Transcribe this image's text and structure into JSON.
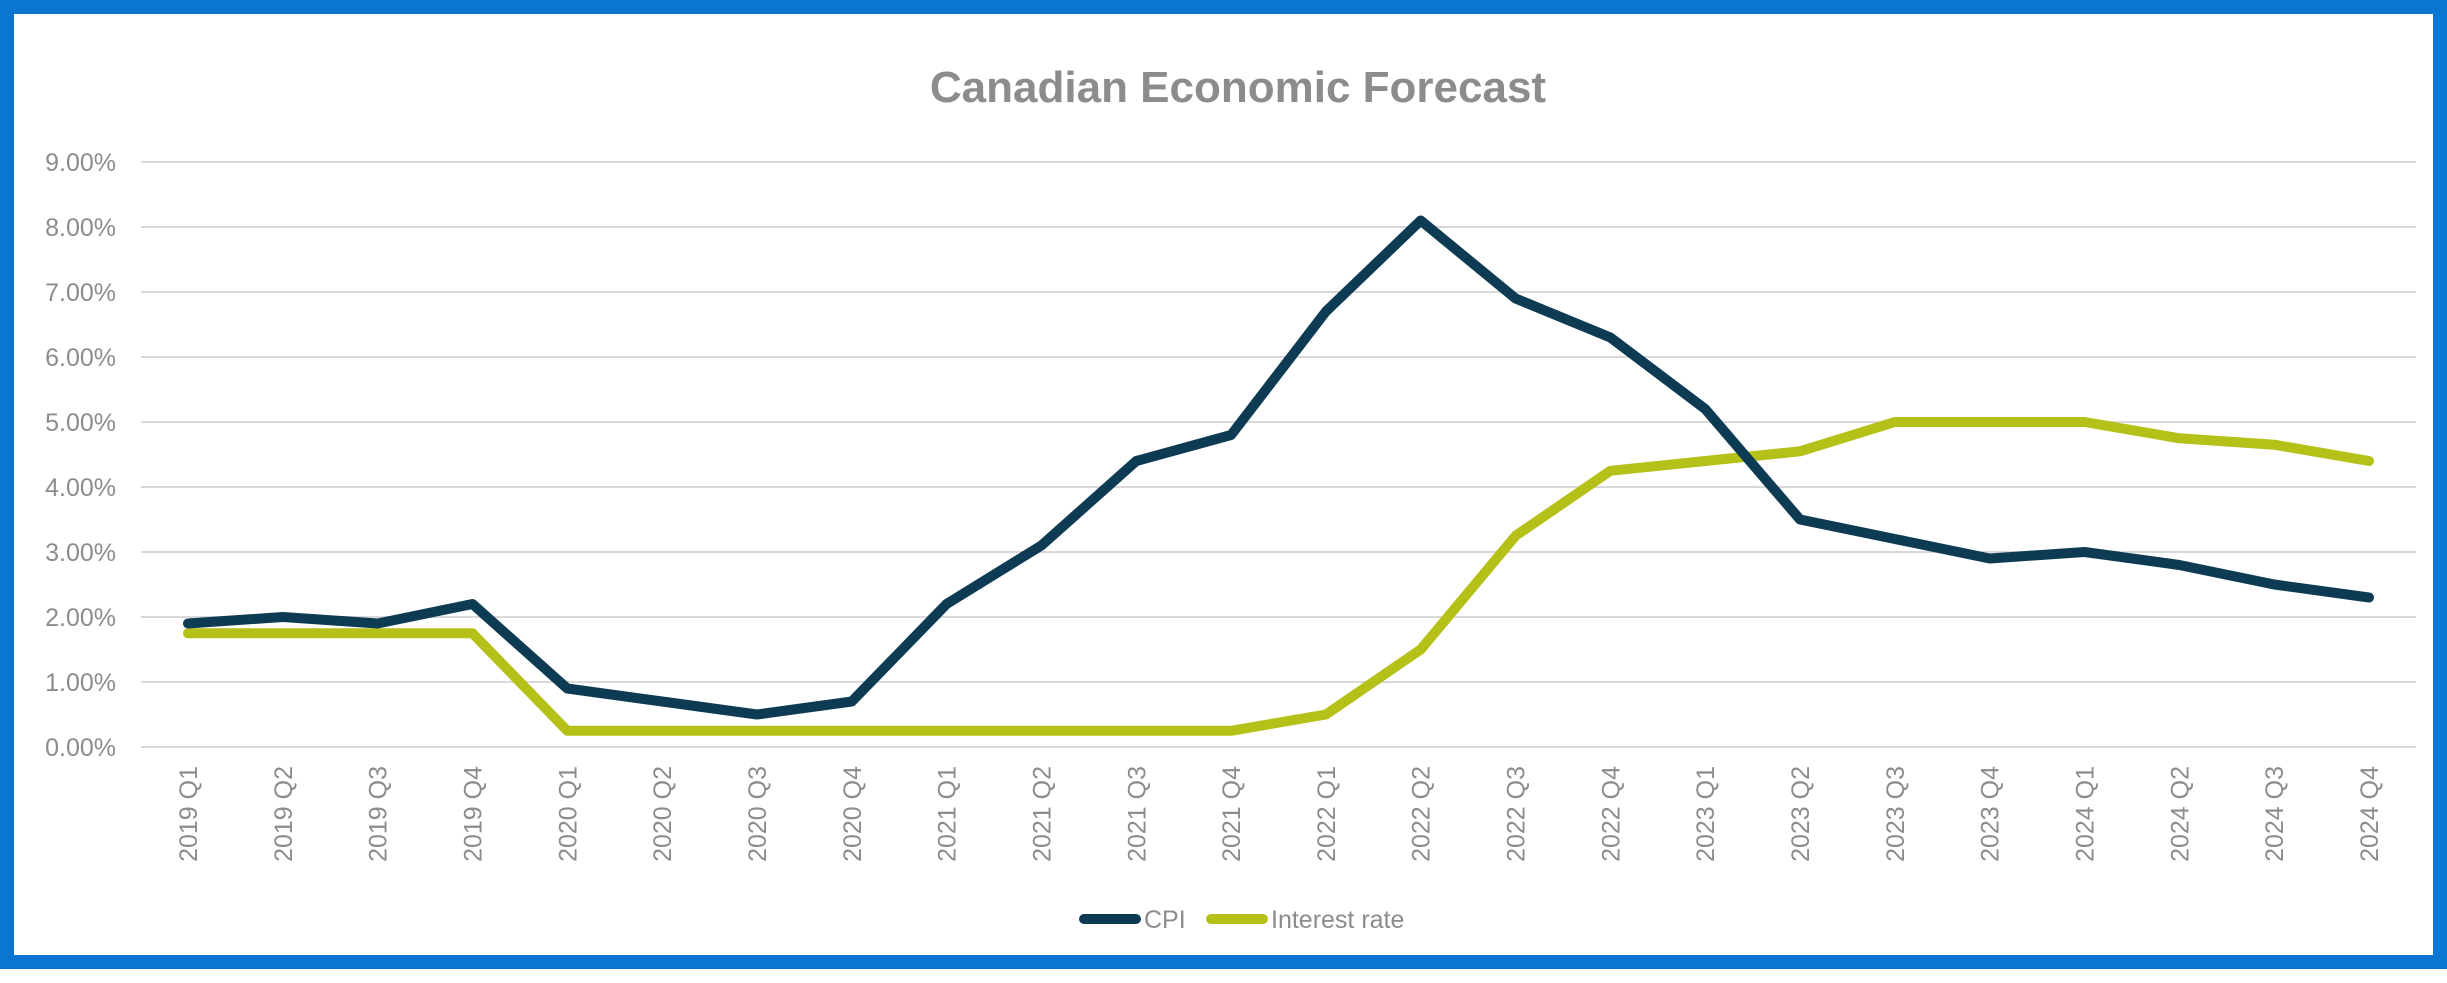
{
  "chart_data": {
    "type": "line",
    "title": "Canadian Economic Forecast",
    "xlabel": "",
    "ylabel": "",
    "ylim": [
      0,
      9
    ],
    "yticks": [
      "0.00%",
      "1.00%",
      "2.00%",
      "3.00%",
      "4.00%",
      "5.00%",
      "6.00%",
      "7.00%",
      "8.00%",
      "9.00%"
    ],
    "categories": [
      "2019 Q1",
      "2019 Q2",
      "2019 Q3",
      "2019 Q4",
      "2020 Q1",
      "2020 Q2",
      "2020 Q3",
      "2020 Q4",
      "2021 Q1",
      "2021 Q2",
      "2021 Q3",
      "2021 Q4",
      "2022 Q1",
      "2022 Q2",
      "2022 Q3",
      "2022 Q4",
      "2023 Q1",
      "2023 Q2",
      "2023 Q3",
      "2023 Q4",
      "2024 Q1",
      "2024 Q2",
      "2024 Q3",
      "2024 Q4"
    ],
    "series": [
      {
        "name": "CPI",
        "color": "#0d3b54",
        "values": [
          1.9,
          2.0,
          1.9,
          2.2,
          0.9,
          0.7,
          0.5,
          0.7,
          2.2,
          3.1,
          4.4,
          4.8,
          6.7,
          8.1,
          6.9,
          6.3,
          5.2,
          3.5,
          3.2,
          2.9,
          3.0,
          2.8,
          2.5,
          2.3
        ]
      },
      {
        "name": "Interest rate",
        "color": "#b5c118",
        "values": [
          1.75,
          1.75,
          1.75,
          1.75,
          0.25,
          0.25,
          0.25,
          0.25,
          0.25,
          0.25,
          0.25,
          0.25,
          0.5,
          1.5,
          3.25,
          4.25,
          4.4,
          4.55,
          5.0,
          5.0,
          5.0,
          4.75,
          4.65,
          4.4
        ]
      }
    ],
    "grid": true,
    "legend_position": "bottom"
  }
}
